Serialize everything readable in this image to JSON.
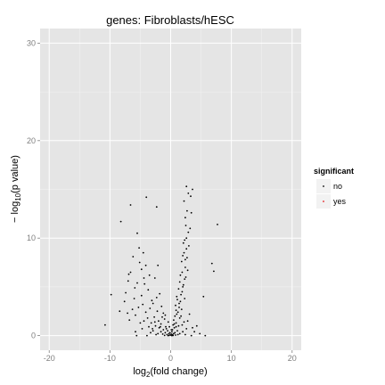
{
  "chart_data": {
    "type": "scatter",
    "title": "genes: Fibroblasts/hESC",
    "xlabel": "log2(fold change)",
    "xlabel_parts": {
      "pre": "log",
      "sub": "2",
      "post": "(fold change)"
    },
    "ylabel": "−log10(p value)",
    "ylabel_parts": {
      "pre": "− log",
      "sub": "10",
      "post": "(p value)"
    },
    "xlim": [
      -21.5,
      21.5
    ],
    "ylim": [
      -1.5,
      31.5
    ],
    "xticks": [
      -20,
      -10,
      0,
      10,
      20
    ],
    "yticks": [
      0,
      10,
      20,
      30
    ],
    "grid": true,
    "colors": {
      "panel": "#e5e5e5",
      "grid_major": "#ffffff",
      "grid_minor": "#f2f2f2",
      "no": "#000000",
      "yes": "#e41a1c"
    },
    "legend": {
      "title": "significant",
      "position": "right",
      "entries": [
        {
          "label": "no",
          "color": "#000000"
        },
        {
          "label": "yes",
          "color": "#e41a1c"
        }
      ]
    },
    "series": [
      {
        "name": "no",
        "points": [
          [
            2.6,
            15.3
          ],
          [
            3.6,
            15.0
          ],
          [
            2.9,
            14.6
          ],
          [
            3.3,
            14.3
          ],
          [
            -4.0,
            14.2
          ],
          [
            2.2,
            13.8
          ],
          [
            -2.3,
            13.2
          ],
          [
            -6.6,
            13.4
          ],
          [
            2.7,
            12.8
          ],
          [
            3.4,
            12.6
          ],
          [
            -8.2,
            11.7
          ],
          [
            7.7,
            11.4
          ],
          [
            2.5,
            11.3
          ],
          [
            3.2,
            11.0
          ],
          [
            -5.5,
            10.5
          ],
          [
            2.6,
            10.0
          ],
          [
            2.1,
            9.5
          ],
          [
            3.0,
            9.2
          ],
          [
            -5.2,
            9.0
          ],
          [
            2.2,
            8.5
          ],
          [
            -4.5,
            8.5
          ],
          [
            2.7,
            8.0
          ],
          [
            1.8,
            7.6
          ],
          [
            -5.1,
            7.5
          ],
          [
            6.8,
            7.4
          ],
          [
            -4.1,
            7.2
          ],
          [
            -2.1,
            7.2
          ],
          [
            2.4,
            7.0
          ],
          [
            -4.8,
            6.8
          ],
          [
            7.1,
            6.6
          ],
          [
            1.9,
            6.5
          ],
          [
            -6.6,
            6.5
          ],
          [
            -6.9,
            6.3
          ],
          [
            2.5,
            6.0
          ],
          [
            -4.4,
            5.9
          ],
          [
            -2.6,
            5.9
          ],
          [
            -7.0,
            5.6
          ],
          [
            1.5,
            5.5
          ],
          [
            -5.5,
            5.4
          ],
          [
            2.1,
            5.2
          ],
          [
            -5.9,
            4.9
          ],
          [
            1.3,
            4.8
          ],
          [
            1.9,
            4.5
          ],
          [
            -7.4,
            4.4
          ],
          [
            -9.8,
            4.2
          ],
          [
            -4.8,
            4.1
          ],
          [
            1.0,
            4.0
          ],
          [
            5.4,
            4.0
          ],
          [
            -6.0,
            3.8
          ],
          [
            -3.1,
            3.6
          ],
          [
            -7.6,
            3.5
          ],
          [
            1.6,
            3.5
          ],
          [
            -2.9,
            3.3
          ],
          [
            -4.6,
            3.2
          ],
          [
            0.8,
            3.1
          ],
          [
            -1.5,
            3.0
          ],
          [
            -5.3,
            2.9
          ],
          [
            1.4,
            2.9
          ],
          [
            -3.4,
            2.8
          ],
          [
            -6.3,
            2.7
          ],
          [
            0.9,
            2.6
          ],
          [
            -2.2,
            2.5
          ],
          [
            -4.1,
            2.4
          ],
          [
            1.2,
            2.4
          ],
          [
            -1.2,
            2.3
          ],
          [
            3.1,
            2.2
          ],
          [
            -5.8,
            2.1
          ],
          [
            0.7,
            2.0
          ],
          [
            -2.7,
            1.9
          ],
          [
            -3.8,
            1.8
          ],
          [
            1.5,
            1.8
          ],
          [
            -1.0,
            1.7
          ],
          [
            0.5,
            1.6
          ],
          [
            -2.0,
            1.5
          ],
          [
            -4.4,
            1.5
          ],
          [
            2.2,
            1.4
          ],
          [
            -3.2,
            1.3
          ],
          [
            0.9,
            1.3
          ],
          [
            -1.6,
            1.2
          ],
          [
            -10.8,
            1.1
          ],
          [
            0.4,
            1.1
          ],
          [
            -2.5,
            1.0
          ],
          [
            1.3,
            1.0
          ],
          [
            -3.6,
            0.9
          ],
          [
            -0.8,
            0.9
          ],
          [
            0.6,
            0.8
          ],
          [
            -1.9,
            0.8
          ],
          [
            2.6,
            0.7
          ],
          [
            -4.7,
            0.7
          ],
          [
            -1.2,
            0.6
          ],
          [
            0.3,
            0.6
          ],
          [
            -2.9,
            0.5
          ],
          [
            1.1,
            0.5
          ],
          [
            -0.5,
            0.5
          ],
          [
            -5.8,
            0.4
          ],
          [
            -1.6,
            0.4
          ],
          [
            0.2,
            0.4
          ],
          [
            2.0,
            0.4
          ],
          [
            -3.3,
            0.3
          ],
          [
            -0.9,
            0.3
          ],
          [
            0.7,
            0.3
          ],
          [
            -2.1,
            0.2
          ],
          [
            -0.3,
            0.2
          ],
          [
            0.5,
            0.2
          ],
          [
            1.5,
            0.2
          ],
          [
            -1.3,
            0.15
          ],
          [
            0.1,
            0.15
          ],
          [
            -0.6,
            0.1
          ],
          [
            0.3,
            0.1
          ],
          [
            -0.2,
            0.05
          ],
          [
            0.0,
            0.05
          ],
          [
            0.8,
            0.05
          ],
          [
            -1.0,
            0.02
          ],
          [
            0.4,
            0.02
          ],
          [
            -0.4,
            0.0
          ],
          [
            0.2,
            0.0
          ],
          [
            -5.6,
            0.0
          ],
          [
            5.7,
            0.0
          ],
          [
            -3.9,
            0.0
          ],
          [
            3.4,
            0.0
          ],
          [
            -2.4,
            0.1
          ],
          [
            2.4,
            0.1
          ],
          [
            -0.1,
            0.3
          ],
          [
            0.1,
            0.6
          ],
          [
            -0.7,
            0.7
          ],
          [
            0.6,
            1.2
          ],
          [
            1.7,
            2.0
          ],
          [
            1.0,
            2.2
          ],
          [
            1.8,
            2.7
          ],
          [
            1.4,
            3.3
          ],
          [
            2.3,
            3.8
          ],
          [
            1.7,
            4.2
          ],
          [
            1.1,
            3.7
          ],
          [
            2.0,
            5.0
          ],
          [
            2.3,
            5.8
          ],
          [
            1.6,
            6.2
          ],
          [
            2.8,
            6.7
          ],
          [
            2.4,
            7.8
          ],
          [
            2.0,
            8.2
          ],
          [
            2.6,
            8.9
          ],
          [
            2.3,
            9.8
          ],
          [
            2.9,
            10.6
          ],
          [
            2.4,
            12.1
          ],
          [
            -0.4,
            1.4
          ],
          [
            -0.2,
            0.9
          ],
          [
            -1.4,
            1.9
          ],
          [
            -0.9,
            2.1
          ],
          [
            -2.3,
            3.9
          ],
          [
            -3.7,
            4.7
          ],
          [
            -1.8,
            4.3
          ],
          [
            -4.3,
            5.3
          ],
          [
            -3.5,
            6.2
          ],
          [
            -6.2,
            8.1
          ],
          [
            -7.1,
            2.3
          ],
          [
            -6.8,
            1.6
          ],
          [
            -5.0,
            1.3
          ],
          [
            -8.4,
            2.5
          ],
          [
            -3.0,
            0.7
          ],
          [
            -2.6,
            1.4
          ],
          [
            -1.7,
            0.9
          ],
          [
            0.9,
            0.9
          ],
          [
            1.9,
            1.1
          ],
          [
            2.8,
            1.5
          ],
          [
            3.6,
            0.8
          ],
          [
            4.3,
            1.0
          ],
          [
            3.9,
            0.4
          ],
          [
            4.8,
            0.2
          ],
          [
            1.2,
            0.1
          ]
        ]
      },
      {
        "name": "yes",
        "points": []
      }
    ]
  }
}
